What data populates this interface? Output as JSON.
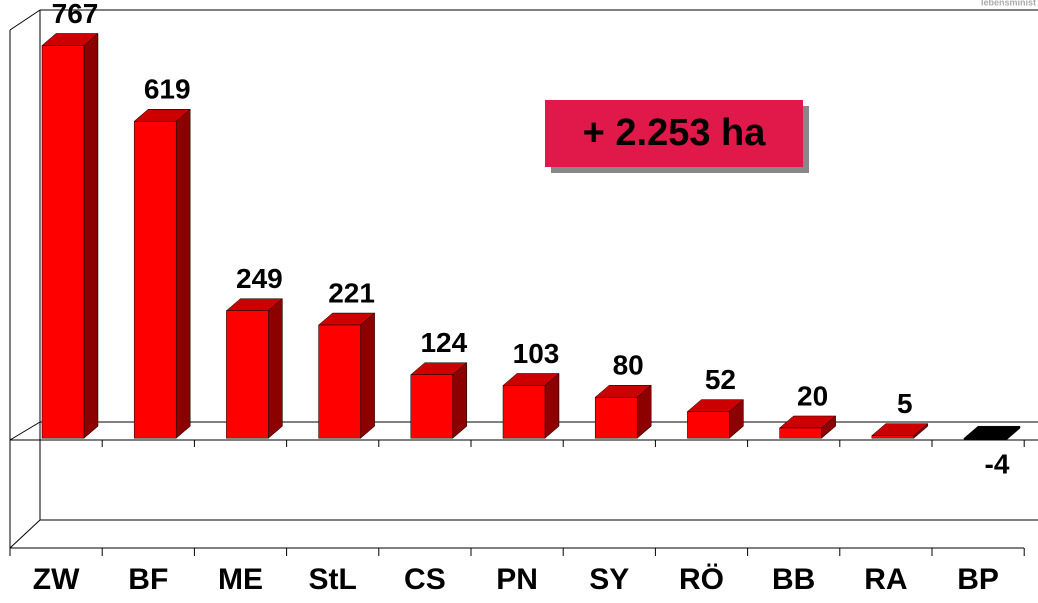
{
  "chart_data": {
    "type": "bar3d",
    "categories": [
      "ZW",
      "BF",
      "ME",
      "StL",
      "CS",
      "PN",
      "SY",
      "RÖ",
      "BB",
      "RA",
      "BP"
    ],
    "values": [
      767,
      619,
      249,
      221,
      124,
      103,
      80,
      52,
      20,
      5,
      -4
    ],
    "color": "#ff0000",
    "negative_color": "#000000",
    "ylim": [
      -191,
      805
    ],
    "annotation": "+ 2.253 ha",
    "watermark": "lebensminist"
  }
}
